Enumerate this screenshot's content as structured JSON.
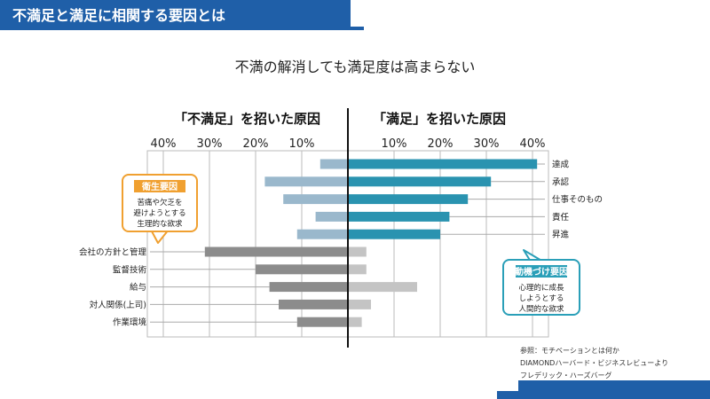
{
  "header": {
    "title": "不満足と満足に相関する要因とは"
  },
  "subtitle": "不満の解消しても満足度は高まらない",
  "left_heading": "「不満足」を招いた原因",
  "right_heading": "「満足」を招いた原因",
  "callouts": {
    "hygiene": {
      "title": "衛生要因",
      "lines": [
        "苦痛や欠乏を",
        "避けようとする",
        "生理的な欲求"
      ],
      "color": "#f0a030"
    },
    "motivator": {
      "title": "動機づけ要因",
      "lines": [
        "心理的に成長",
        "しようとする",
        "人間的な欲求"
      ],
      "color": "#2a9fb8"
    }
  },
  "reference": [
    "参照：モチベーションとは何か",
    "DIAMONDハーバード・ビジネスレビューより",
    "フレデリック・ハーズバーグ"
  ],
  "colors": {
    "accent": "#1f5fa8",
    "motivator": "#2a93b0",
    "motivator_light": "#9ab8cc",
    "hygiene": "#8c8c8c",
    "hygiene_light": "#c4c4c4"
  },
  "chart_data": {
    "type": "bar",
    "orientation": "horizontal-diverging",
    "x_ticks_left": [
      "40%",
      "30%",
      "20%",
      "10%"
    ],
    "x_ticks_right": [
      "10%",
      "20%",
      "30%",
      "40%"
    ],
    "xlim": [
      -40,
      40
    ],
    "series": [
      {
        "name": "「不満足」を招いた原因",
        "side": "left"
      },
      {
        "name": "「満足」を招いた原因",
        "side": "right"
      }
    ],
    "categories": [
      {
        "label": "達成",
        "group": "motivator",
        "dissatisfaction": 6,
        "satisfaction": 41
      },
      {
        "label": "承認",
        "group": "motivator",
        "dissatisfaction": 18,
        "satisfaction": 31
      },
      {
        "label": "仕事そのもの",
        "group": "motivator",
        "dissatisfaction": 14,
        "satisfaction": 26
      },
      {
        "label": "責任",
        "group": "motivator",
        "dissatisfaction": 7,
        "satisfaction": 22
      },
      {
        "label": "昇進",
        "group": "motivator",
        "dissatisfaction": 11,
        "satisfaction": 20
      },
      {
        "label": "会社の方針と管理",
        "group": "hygiene",
        "dissatisfaction": 31,
        "satisfaction": 4
      },
      {
        "label": "監督技術",
        "group": "hygiene",
        "dissatisfaction": 20,
        "satisfaction": 4
      },
      {
        "label": "給与",
        "group": "hygiene",
        "dissatisfaction": 17,
        "satisfaction": 15
      },
      {
        "label": "対人関係(上司)",
        "group": "hygiene",
        "dissatisfaction": 15,
        "satisfaction": 5
      },
      {
        "label": "作業環境",
        "group": "hygiene",
        "dissatisfaction": 11,
        "satisfaction": 3
      }
    ]
  }
}
